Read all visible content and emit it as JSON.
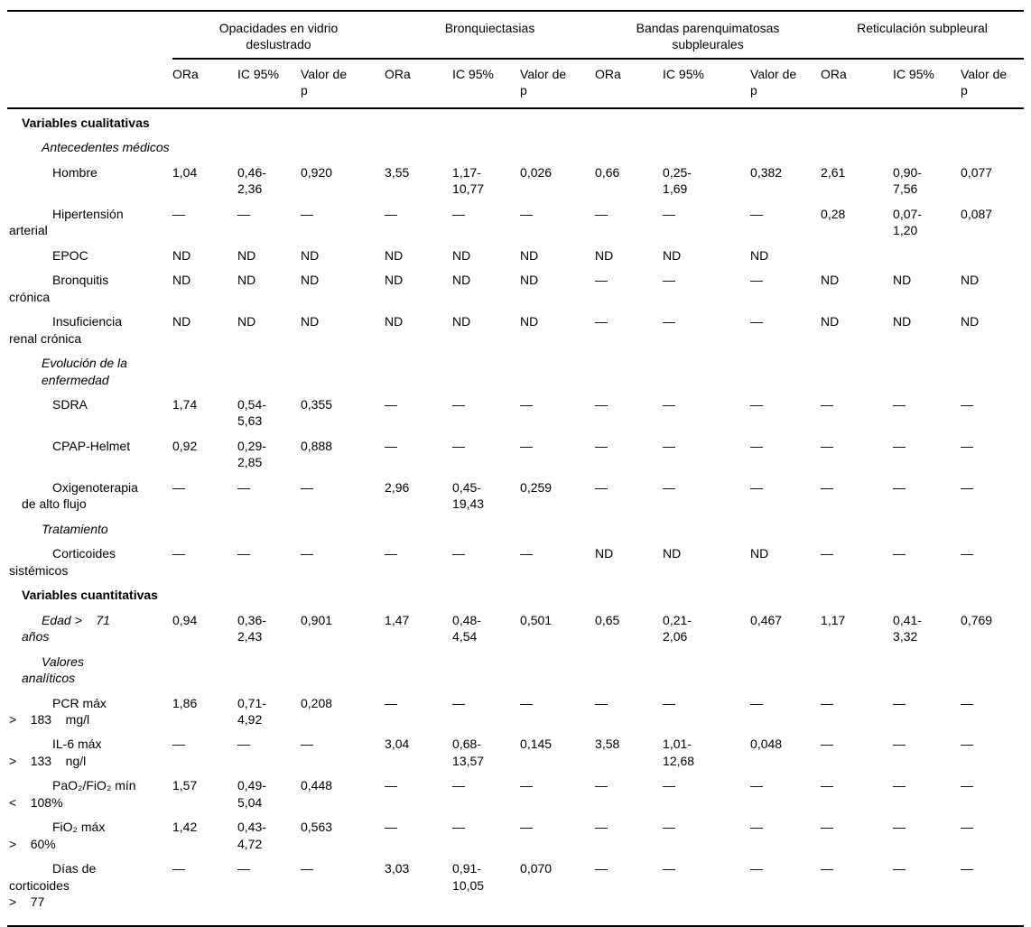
{
  "table": {
    "column_groups": [
      {
        "label": "Opacidades en vidrio\ndeslustrado"
      },
      {
        "label": "Bronquiectasias"
      },
      {
        "label": "Bandas parenquimatosas\nsubpleurales"
      },
      {
        "label": "Reticulación subpleural"
      }
    ],
    "stat_headers": [
      "ORa",
      "IC 95%",
      "Valor de\np"
    ],
    "rows": [
      {
        "style": "section",
        "label": [
          {
            "t": "Variables cualitativas",
            "i": 1
          }
        ],
        "cells": [
          "",
          "",
          "",
          "",
          "",
          "",
          "",
          "",
          "",
          "",
          "",
          ""
        ]
      },
      {
        "style": "subsection",
        "italic": true,
        "label": [
          {
            "t": "Antecedentes médicos",
            "i": 2
          }
        ],
        "cells": [
          "",
          "",
          "",
          "",
          "",
          "",
          "",
          "",
          "",
          "",
          "",
          ""
        ]
      },
      {
        "style": "item",
        "label": [
          {
            "t": "Hombre",
            "i": 3
          }
        ],
        "cells": [
          "1,04",
          "0,46-\n2,36",
          "0,920",
          "3,55",
          "1,17-\n10,77",
          "0,026",
          "0,66",
          "0,25-\n1,69",
          "0,382",
          "2,61",
          "0,90-\n7,56",
          "0,077"
        ]
      },
      {
        "style": "item",
        "label": [
          {
            "t": "Hipertensión",
            "i": 3
          },
          {
            "t": "arterial",
            "i": 0
          }
        ],
        "cells": [
          "—",
          "—",
          "—",
          "—",
          "—",
          "—",
          "—",
          "—",
          "—",
          "0,28",
          "0,07-\n1,20",
          "0,087"
        ]
      },
      {
        "style": "item",
        "label": [
          {
            "t": "EPOC",
            "i": 3
          }
        ],
        "cells": [
          "ND",
          "ND",
          "ND",
          "ND",
          "ND",
          "ND",
          "ND",
          "ND",
          "ND",
          "",
          "",
          ""
        ]
      },
      {
        "style": "item",
        "label": [
          {
            "t": "Bronquitis",
            "i": 3
          },
          {
            "t": "crónica",
            "i": 0
          }
        ],
        "cells": [
          "ND",
          "ND",
          "ND",
          "ND",
          "ND",
          "ND",
          "—",
          "—",
          "—",
          "ND",
          "ND",
          "ND"
        ]
      },
      {
        "style": "item",
        "label": [
          {
            "t": "Insuficiencia",
            "i": 3
          },
          {
            "t": "renal crónica",
            "i": 0
          }
        ],
        "cells": [
          "ND",
          "ND",
          "ND",
          "ND",
          "ND",
          "ND",
          "—",
          "—",
          "—",
          "ND",
          "ND",
          "ND"
        ]
      },
      {
        "style": "subsection",
        "italic": true,
        "label": [
          {
            "t": "Evolución de la enfermedad",
            "i": 2
          }
        ],
        "cells": [
          "",
          "",
          "",
          "",
          "",
          "",
          "",
          "",
          "",
          "",
          "",
          ""
        ]
      },
      {
        "style": "item",
        "label": [
          {
            "t": "SDRA",
            "i": 3
          }
        ],
        "cells": [
          "1,74",
          "0,54-\n5,63",
          "0,355",
          "—",
          "—",
          "—",
          "—",
          "—",
          "—",
          "—",
          "—",
          "—"
        ]
      },
      {
        "style": "item",
        "label": [
          {
            "t": "CPAP-Helmet",
            "i": 3
          }
        ],
        "cells": [
          "0,92",
          "0,29-\n2,85",
          "0,888",
          "—",
          "—",
          "—",
          "—",
          "—",
          "—",
          "—",
          "—",
          "—"
        ]
      },
      {
        "style": "item",
        "label": [
          {
            "t": "Oxigenoterapia",
            "i": 3
          },
          {
            "t": "de alto flujo",
            "i": 1
          }
        ],
        "cells": [
          "—",
          "—",
          "—",
          "2,96",
          "0,45-\n19,43",
          "0,259",
          "—",
          "—",
          "—",
          "—",
          "—",
          "—"
        ]
      },
      {
        "style": "subsection",
        "italic": true,
        "label": [
          {
            "t": "Tratamiento",
            "i": 2
          }
        ],
        "cells": [
          "",
          "",
          "",
          "",
          "",
          "",
          "",
          "",
          "",
          "",
          "",
          ""
        ]
      },
      {
        "style": "item",
        "label": [
          {
            "t": "Corticoides",
            "i": 3
          },
          {
            "t": "sistémicos",
            "i": 0
          }
        ],
        "cells": [
          "—",
          "—",
          "—",
          "—",
          "—",
          "—",
          "ND",
          "ND",
          "ND",
          "—",
          "—",
          "—"
        ]
      },
      {
        "style": "section",
        "label": [
          {
            "t": "Variables cuantitativas",
            "i": 1
          }
        ],
        "cells": [
          "",
          "",
          "",
          "",
          "",
          "",
          "",
          "",
          "",
          "",
          "",
          ""
        ]
      },
      {
        "style": "item",
        "italic": true,
        "label": [
          {
            "t": "Edad >    71",
            "i": 2
          },
          {
            "t": "años",
            "i": 1
          }
        ],
        "cells": [
          "0,94",
          "0,36-\n2,43",
          "0,901",
          "1,47",
          "0,48-\n4,54",
          "0,501",
          "0,65",
          "0,21-\n2,06",
          "0,467",
          "1,17",
          "0,41-\n3,32",
          "0,769"
        ]
      },
      {
        "style": "subsection",
        "italic": true,
        "label": [
          {
            "t": "Valores",
            "i": 2
          },
          {
            "t": "analíticos",
            "i": 1
          }
        ],
        "cells": [
          "",
          "",
          "",
          "",
          "",
          "",
          "",
          "",
          "",
          "",
          "",
          ""
        ]
      },
      {
        "style": "item",
        "label": [
          {
            "t": "PCR máx",
            "i": 3
          },
          {
            "t": ">    183    mg/l",
            "i": 0
          }
        ],
        "cells": [
          "1,86",
          "0,71-\n4,92",
          "0,208",
          "—",
          "—",
          "—",
          "—",
          "—",
          "—",
          "—",
          "—",
          "—"
        ]
      },
      {
        "style": "item",
        "label": [
          {
            "t": "IL-6 máx",
            "i": 3
          },
          {
            "t": ">    133    ng/l",
            "i": 0
          }
        ],
        "cells": [
          "—",
          "—",
          "—",
          "3,04",
          "0,68-\n13,57",
          "0,145",
          "3,58",
          "1,01-\n12,68",
          "0,048",
          "—",
          "—",
          "—"
        ]
      },
      {
        "style": "item",
        "label": [
          {
            "t": "PaO₂/FiO₂ mín",
            "i": 3
          },
          {
            "t": "<    108%",
            "i": 0
          }
        ],
        "cells": [
          "1,57",
          "0,49-\n5,04",
          "0,448",
          "—",
          "—",
          "—",
          "—",
          "—",
          "—",
          "—",
          "—",
          "—"
        ]
      },
      {
        "style": "item",
        "label": [
          {
            "t": "FiO₂ máx",
            "i": 3
          },
          {
            "t": ">    60%",
            "i": 0
          }
        ],
        "cells": [
          "1,42",
          "0,43-\n4,72",
          "0,563",
          "—",
          "—",
          "—",
          "—",
          "—",
          "—",
          "—",
          "—",
          "—"
        ]
      },
      {
        "style": "item",
        "label": [
          {
            "t": "Días de",
            "i": 3
          },
          {
            "t": "corticoides",
            "i": 0
          },
          {
            "t": ">    77",
            "i": 0
          }
        ],
        "cells": [
          "—",
          "—",
          "—",
          "3,03",
          "0,91-\n10,05",
          "0,070",
          "—",
          "—",
          "—",
          "—",
          "—",
          "—"
        ]
      }
    ]
  }
}
